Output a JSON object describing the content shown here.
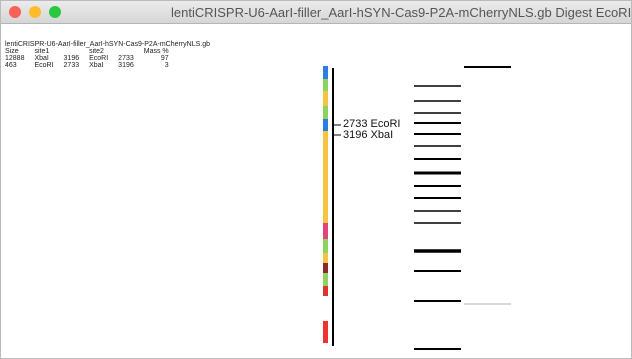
{
  "window": {
    "title": "lentiCRISPR-U6-AarI-filler_AarI-hSYN-Cas9-P2A-mCherryNLS.gb Digest EcoRI+XbaI"
  },
  "table": {
    "name": "lentiCRISPR-U6-AarI-filler_AarI-hSYN-Cas9-P2A-mCherryNLS.gb",
    "columns": [
      "Size",
      "site1",
      "",
      "site2",
      "",
      "Mass %"
    ],
    "rows": [
      [
        "12888",
        "XbaI",
        "3196",
        "EcoRI",
        "2733",
        "97"
      ],
      [
        "463",
        "EcoRI",
        "2733",
        "XbaI",
        "3196",
        "3"
      ]
    ]
  },
  "map": {
    "labels": [
      "2733 EcoRI",
      "3196 XbaI"
    ]
  }
}
